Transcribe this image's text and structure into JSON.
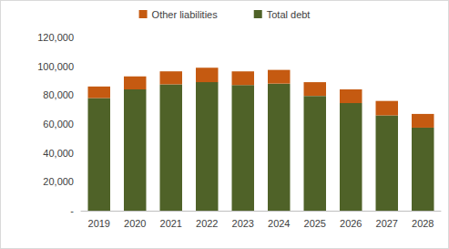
{
  "chart_data": {
    "type": "bar",
    "stacked": true,
    "categories": [
      "2019",
      "2020",
      "2021",
      "2022",
      "2023",
      "2024",
      "2025",
      "2026",
      "2027",
      "2028"
    ],
    "series": [
      {
        "name": "Total debt",
        "color": "#4f6228",
        "values": [
          78000,
          84000,
          87500,
          89000,
          87000,
          88000,
          79500,
          74500,
          66000,
          57500
        ]
      },
      {
        "name": "Other liabilities",
        "color": "#c55a11",
        "values": [
          8000,
          9000,
          9000,
          10000,
          9500,
          9500,
          9500,
          9500,
          10000,
          9500
        ]
      }
    ],
    "ylim": [
      0,
      120000
    ],
    "yticks": [
      {
        "value": 0,
        "label": "-"
      },
      {
        "value": 20000,
        "label": "20,000"
      },
      {
        "value": 40000,
        "label": "40,000"
      },
      {
        "value": 60000,
        "label": "60,000"
      },
      {
        "value": 80000,
        "label": "80,000"
      },
      {
        "value": 100000,
        "label": "100,000"
      },
      {
        "value": 120000,
        "label": "120,000"
      }
    ],
    "grid": false,
    "legend": "top"
  }
}
